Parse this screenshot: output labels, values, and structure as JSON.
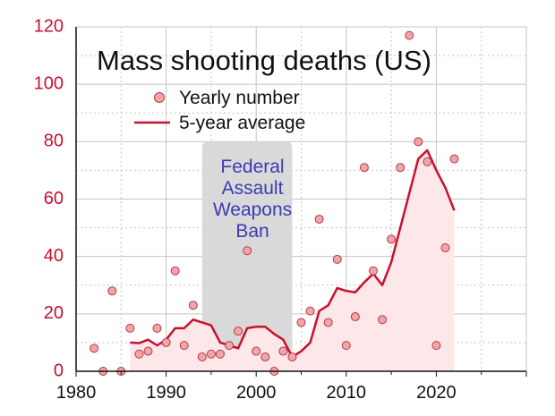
{
  "chart_data": {
    "type": "line",
    "title": "Mass shooting deaths (US)",
    "xlabel": "",
    "ylabel": "",
    "xlim": [
      1980,
      2030
    ],
    "ylim": [
      0,
      120
    ],
    "x_ticks": [
      1980,
      1990,
      2000,
      2010,
      2020
    ],
    "y_ticks": [
      0,
      20,
      40,
      60,
      80,
      100,
      120
    ],
    "grid": true,
    "legend_position": "top-left",
    "legend": [
      {
        "label": "Yearly number",
        "kind": "point"
      },
      {
        "label": "5-year average",
        "kind": "line"
      }
    ],
    "colors": {
      "line": "#c8102e",
      "area": "#fde7e9",
      "point_fill": "#f2a5a8",
      "point_stroke": "#b23a48",
      "ban_region": "#d9d9d9",
      "ban_text": "#3b3bb3",
      "y_ticks": "#c8102e"
    },
    "annotation": {
      "lines": [
        "Federal",
        "Assault",
        "Weapons",
        "Ban"
      ],
      "x_range": [
        1994,
        2004
      ]
    },
    "series": [
      {
        "name": "Yearly number",
        "kind": "scatter",
        "points": [
          [
            1982,
            8
          ],
          [
            1983,
            0
          ],
          [
            1984,
            28
          ],
          [
            1985,
            0
          ],
          [
            1986,
            15
          ],
          [
            1987,
            6
          ],
          [
            1988,
            7
          ],
          [
            1989,
            15
          ],
          [
            1990,
            10
          ],
          [
            1991,
            35
          ],
          [
            1992,
            9
          ],
          [
            1993,
            23
          ],
          [
            1994,
            5
          ],
          [
            1995,
            6
          ],
          [
            1996,
            6
          ],
          [
            1997,
            9
          ],
          [
            1998,
            14
          ],
          [
            1999,
            42
          ],
          [
            2000,
            7
          ],
          [
            2001,
            5
          ],
          [
            2002,
            0
          ],
          [
            2003,
            7
          ],
          [
            2004,
            5
          ],
          [
            2005,
            17
          ],
          [
            2006,
            21
          ],
          [
            2007,
            53
          ],
          [
            2008,
            17
          ],
          [
            2009,
            39
          ],
          [
            2010,
            9
          ],
          [
            2011,
            19
          ],
          [
            2012,
            71
          ],
          [
            2013,
            35
          ],
          [
            2014,
            18
          ],
          [
            2015,
            46
          ],
          [
            2016,
            71
          ],
          [
            2017,
            117
          ],
          [
            2018,
            80
          ],
          [
            2019,
            73
          ],
          [
            2020,
            9
          ],
          [
            2021,
            43
          ],
          [
            2022,
            74
          ]
        ]
      },
      {
        "name": "5-year average",
        "kind": "line",
        "points": [
          [
            1986,
            10
          ],
          [
            1987,
            9.8
          ],
          [
            1988,
            11
          ],
          [
            1989,
            9
          ],
          [
            1990,
            11
          ],
          [
            1991,
            15
          ],
          [
            1992,
            15
          ],
          [
            1993,
            18
          ],
          [
            1994,
            17
          ],
          [
            1995,
            16
          ],
          [
            1996,
            10
          ],
          [
            1997,
            9
          ],
          [
            1998,
            8
          ],
          [
            1999,
            15
          ],
          [
            2000,
            15.5
          ],
          [
            2001,
            15.5
          ],
          [
            2002,
            13
          ],
          [
            2003,
            11
          ],
          [
            2004,
            5
          ],
          [
            2005,
            7
          ],
          [
            2006,
            10
          ],
          [
            2007,
            21
          ],
          [
            2008,
            23
          ],
          [
            2009,
            29
          ],
          [
            2010,
            28
          ],
          [
            2011,
            27.5
          ],
          [
            2012,
            31
          ],
          [
            2013,
            34
          ],
          [
            2014,
            30
          ],
          [
            2015,
            38
          ],
          [
            2016,
            50
          ],
          [
            2017,
            62
          ],
          [
            2018,
            74
          ],
          [
            2019,
            77
          ],
          [
            2020,
            70
          ],
          [
            2021,
            64
          ],
          [
            2022,
            56
          ]
        ]
      }
    ]
  }
}
